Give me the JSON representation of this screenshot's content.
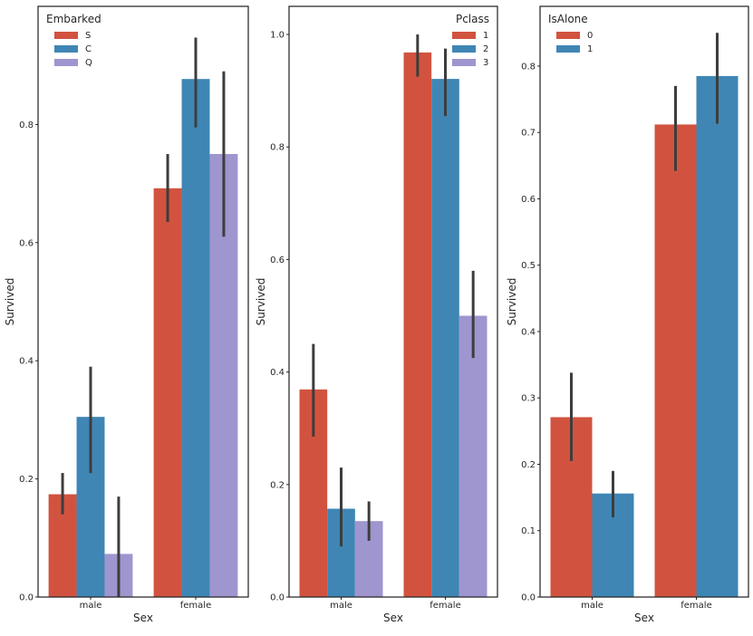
{
  "chart_data": [
    {
      "type": "bar",
      "categories": [
        "male",
        "female"
      ],
      "xlabel": "Sex",
      "ylabel": "Survived",
      "ylim": [
        0,
        1.0
      ],
      "yticks": [
        "0.0",
        "0.2",
        "0.4",
        "0.6",
        "0.8"
      ],
      "legend": {
        "title": "Embarked",
        "placement": "top-left"
      },
      "series": [
        {
          "name": "S",
          "color": "#d1533f",
          "values": [
            0.174,
            0.692
          ],
          "ci": [
            [
              0.14,
              0.21
            ],
            [
              0.635,
              0.75
            ]
          ]
        },
        {
          "name": "C",
          "color": "#3f86b5",
          "values": [
            0.305,
            0.877
          ],
          "ci": [
            [
              0.21,
              0.39
            ],
            [
              0.795,
              0.947
            ]
          ]
        },
        {
          "name": "Q",
          "color": "#9f95cf",
          "values": [
            0.073,
            0.75
          ],
          "ci": [
            [
              0.0,
              0.17
            ],
            [
              0.61,
              0.89
            ]
          ]
        }
      ]
    },
    {
      "type": "bar",
      "categories": [
        "male",
        "female"
      ],
      "xlabel": "Sex",
      "ylabel": "Survived",
      "ylim": [
        0,
        1.05
      ],
      "yticks": [
        "0.0",
        "0.2",
        "0.4",
        "0.6",
        "0.8",
        "1.0"
      ],
      "legend": {
        "title": "Pclass",
        "placement": "top-right"
      },
      "series": [
        {
          "name": "1",
          "color": "#d1533f",
          "values": [
            0.369,
            0.968
          ],
          "ci": [
            [
              0.285,
              0.45
            ],
            [
              0.925,
              1.0
            ]
          ]
        },
        {
          "name": "2",
          "color": "#3f86b5",
          "values": [
            0.157,
            0.921
          ],
          "ci": [
            [
              0.09,
              0.23
            ],
            [
              0.855,
              0.975
            ]
          ]
        },
        {
          "name": "3",
          "color": "#9f95cf",
          "values": [
            0.135,
            0.5
          ],
          "ci": [
            [
              0.1,
              0.17
            ],
            [
              0.425,
              0.58
            ]
          ]
        }
      ]
    },
    {
      "type": "bar",
      "categories": [
        "male",
        "female"
      ],
      "xlabel": "Sex",
      "ylabel": "Survived",
      "ylim": [
        0,
        0.89
      ],
      "yticks": [
        "0.0",
        "0.1",
        "0.2",
        "0.3",
        "0.4",
        "0.5",
        "0.6",
        "0.7",
        "0.8"
      ],
      "legend": {
        "title": "IsAlone",
        "placement": "top-left"
      },
      "series": [
        {
          "name": "0",
          "color": "#d1533f",
          "values": [
            0.271,
            0.712
          ],
          "ci": [
            [
              0.205,
              0.338
            ],
            [
              0.642,
              0.77
            ]
          ]
        },
        {
          "name": "1",
          "color": "#3f86b5",
          "values": [
            0.156,
            0.785
          ],
          "ci": [
            [
              0.12,
              0.19
            ],
            [
              0.713,
              0.85
            ]
          ]
        }
      ]
    }
  ]
}
